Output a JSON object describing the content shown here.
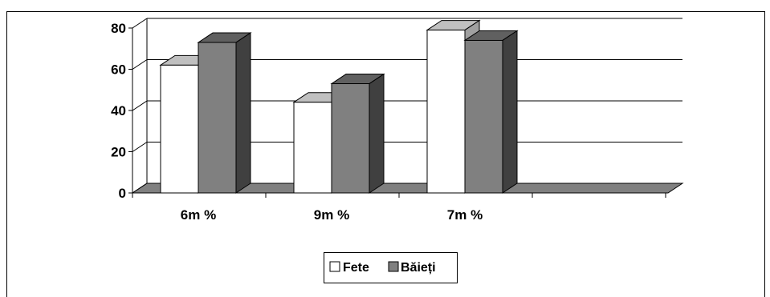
{
  "chart_data": {
    "type": "bar",
    "style": "3d-clustered-column",
    "categories": [
      "6m %",
      "9m %",
      "7m %"
    ],
    "series": [
      {
        "name": "Fete",
        "values": [
          62,
          44,
          79
        ],
        "color": "#ffffff"
      },
      {
        "name": "Băieți",
        "values": [
          73,
          53,
          74
        ],
        "color": "#808080"
      }
    ],
    "ylim": [
      0,
      80
    ],
    "yticks": [
      0,
      20,
      40,
      60,
      80
    ],
    "grid": true,
    "legend_position": "bottom-center",
    "title": "",
    "xlabel": "",
    "ylabel": ""
  }
}
